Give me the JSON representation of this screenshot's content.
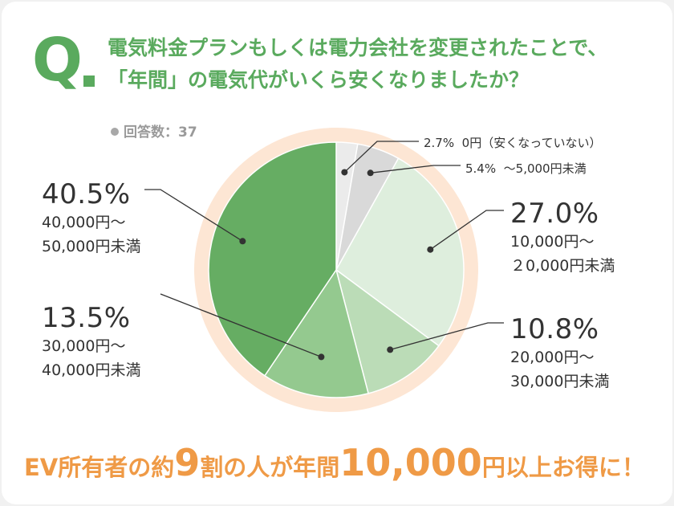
{
  "header": {
    "q_mark": "Q",
    "question_line1": "電気料金プランもしくは電力会社を変更されたことで、",
    "question_line2": "「年間」の電気代がいくら安くなりましたか？"
  },
  "respondents": "回答数：37",
  "chart_data": {
    "type": "pie",
    "start": "12 o'clock, clockwise",
    "slices": [
      {
        "pct": "2.7%",
        "range": "0円（安くなっていない）",
        "value": 2.7,
        "color": "#ebebeb"
      },
      {
        "pct": "5.4%",
        "range": "～5,000円未満",
        "value": 5.4,
        "color": "#d9d9d9"
      },
      {
        "pct": "27.0%",
        "range_line1": "10,000円～",
        "range_line2": "２0,000円未満",
        "value": 27.0,
        "color": "#deeedd"
      },
      {
        "pct": "10.8%",
        "range_line1": "20,000円～",
        "range_line2": "30,000円未満",
        "value": 10.8,
        "color": "#bbdcb7"
      },
      {
        "pct": "13.5%",
        "range_line1": "30,000円～",
        "range_line2": "40,000円未満",
        "value": 13.5,
        "color": "#94c98f"
      },
      {
        "pct": "40.5%",
        "range_line1": "40,000円～",
        "range_line2": "50,000円未満",
        "value": 40.5,
        "color": "#66ad63"
      }
    ],
    "highlight_ring_color": "#fde6d4"
  },
  "conclusion": {
    "part1": "EV所有者の約",
    "big1": "9",
    "part2": "割の人が年間",
    "big2": "10,000",
    "part3": "円以上お得に！"
  }
}
